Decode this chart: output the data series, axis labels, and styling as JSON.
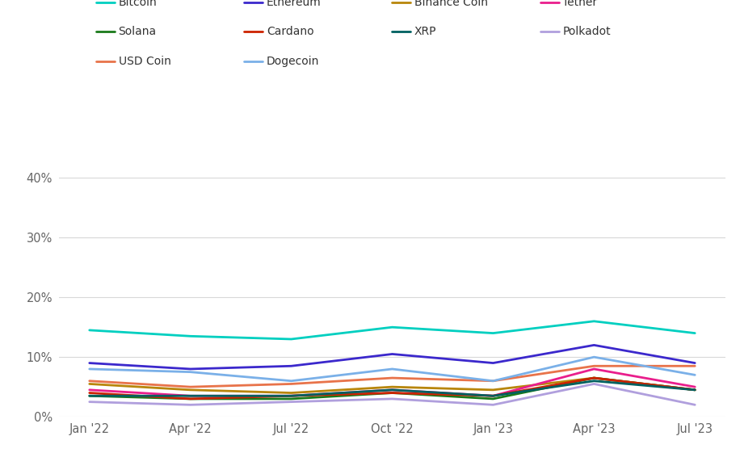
{
  "x_labels": [
    "Jan '22",
    "Apr '22",
    "Jul '22",
    "Oct '22",
    "Jan '23",
    "Apr '23",
    "Jul '23"
  ],
  "x_positions": [
    0,
    1,
    2,
    3,
    4,
    5,
    6
  ],
  "series": [
    {
      "name": "Bitcoin",
      "color": "#00cfc0",
      "linewidth": 2.0,
      "data": [
        14.5,
        13.5,
        13.0,
        15.0,
        14.0,
        16.0,
        14.0
      ]
    },
    {
      "name": "Ethereum",
      "color": "#3b28cc",
      "linewidth": 2.0,
      "data": [
        9.0,
        8.0,
        8.5,
        10.5,
        9.0,
        12.0,
        9.0
      ]
    },
    {
      "name": "Binance Coin",
      "color": "#b8860b",
      "linewidth": 2.0,
      "data": [
        5.5,
        4.5,
        4.0,
        5.0,
        4.5,
        6.5,
        4.5
      ]
    },
    {
      "name": "Tether",
      "color": "#e91e8c",
      "linewidth": 2.0,
      "data": [
        4.5,
        3.5,
        3.5,
        4.5,
        3.5,
        8.0,
        5.0
      ]
    },
    {
      "name": "Solana",
      "color": "#1a7a1a",
      "linewidth": 2.0,
      "data": [
        3.5,
        3.0,
        3.0,
        4.0,
        3.0,
        6.5,
        4.5
      ]
    },
    {
      "name": "Cardano",
      "color": "#cc2200",
      "linewidth": 2.0,
      "data": [
        4.0,
        3.0,
        3.5,
        4.0,
        3.5,
        6.5,
        4.5
      ]
    },
    {
      "name": "XRP",
      "color": "#006060",
      "linewidth": 2.0,
      "data": [
        3.5,
        3.5,
        3.5,
        4.5,
        3.5,
        6.0,
        4.5
      ]
    },
    {
      "name": "Polkadot",
      "color": "#b09fdd",
      "linewidth": 2.0,
      "data": [
        2.5,
        2.0,
        2.5,
        3.0,
        2.0,
        5.5,
        2.0
      ]
    },
    {
      "name": "USD Coin",
      "color": "#e8734a",
      "linewidth": 2.0,
      "data": [
        6.0,
        5.0,
        5.5,
        6.5,
        6.0,
        8.5,
        8.5
      ]
    },
    {
      "name": "Dogecoin",
      "color": "#7ab0e8",
      "linewidth": 2.0,
      "data": [
        8.0,
        7.5,
        6.0,
        8.0,
        6.0,
        10.0,
        7.0
      ]
    }
  ],
  "legend_order": [
    "Bitcoin",
    "Ethereum",
    "Binance Coin",
    "Tether",
    "Solana",
    "Cardano",
    "XRP",
    "Polkadot",
    "USD Coin",
    "Dogecoin"
  ],
  "ylim": [
    0,
    44
  ],
  "yticks": [
    0,
    10,
    20,
    30,
    40
  ],
  "ytick_labels": [
    "0%",
    "10%",
    "20%",
    "30%",
    "40%"
  ],
  "background_color": "#ffffff",
  "grid_color": "#d8d8d8",
  "legend_fontsize": 10,
  "tick_fontsize": 10.5
}
